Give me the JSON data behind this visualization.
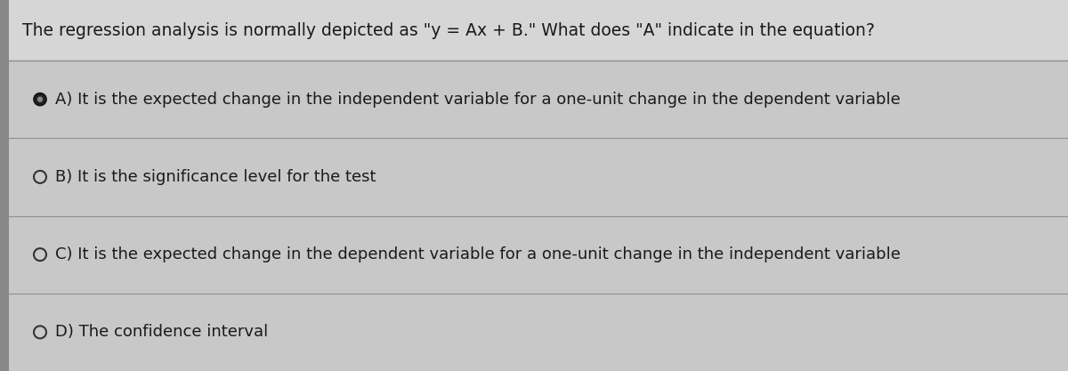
{
  "title": "The regression analysis is normally depicted as \"y = Ax + B.\" What does \"A\" indicate in the equation?",
  "options": [
    {
      "label": "A",
      "text": "It is the expected change in the independent variable for a one-unit change in the dependent variable",
      "selected": true
    },
    {
      "label": "B",
      "text": "It is the significance level for the test",
      "selected": false
    },
    {
      "label": "C",
      "text": "It is the expected change in the dependent variable for a one-unit change in the independent variable",
      "selected": false
    },
    {
      "label": "D",
      "text": "The confidence interval",
      "selected": false
    }
  ],
  "bg_color": "#b0b0b0",
  "stripe_color_light": "#c2c2c2",
  "stripe_color_dark": "#a8a8a8",
  "title_bg_color": "#d6d6d6",
  "option_bg_color": "#c8c8c8",
  "sep_color": "#909090",
  "text_color": "#1a1a1a",
  "title_fontsize": 13.5,
  "option_fontsize": 13.0,
  "fig_width": 12.0,
  "fig_height": 4.17,
  "left_bar_color": "#888888",
  "left_bar_width": 0.03
}
